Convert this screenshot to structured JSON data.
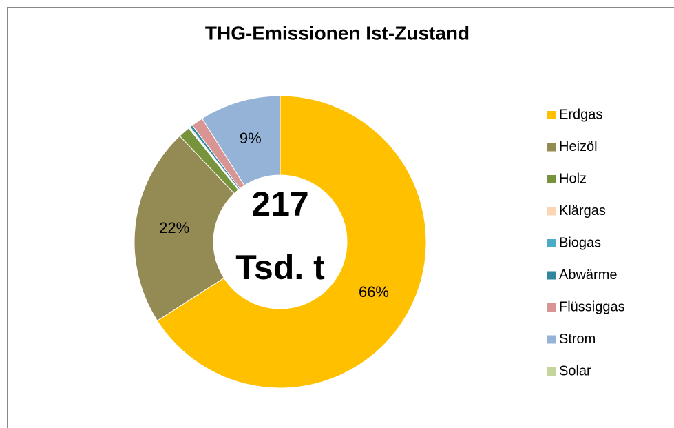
{
  "chart_data": {
    "type": "donut",
    "title": "THG-Emissionen Ist-Zustand",
    "center_text": [
      "217",
      "Tsd. t"
    ],
    "categories": [
      "Erdgas",
      "Heizöl",
      "Holz",
      "Klärgas",
      "Biogas",
      "Abwärme",
      "Flüssiggas",
      "Strom",
      "Solar"
    ],
    "values": [
      66,
      22,
      1.3,
      0.1,
      0.1,
      0.3,
      1.3,
      9,
      0
    ],
    "value_labels": [
      "66%",
      "22%",
      null,
      null,
      null,
      null,
      null,
      "9%",
      null
    ],
    "colors": [
      "#FFC000",
      "#948A54",
      "#77933C",
      "#FCD5B5",
      "#4BACC6",
      "#31859C",
      "#D99594",
      "#95B3D7",
      "#C3D69B"
    ],
    "legend": "right"
  }
}
